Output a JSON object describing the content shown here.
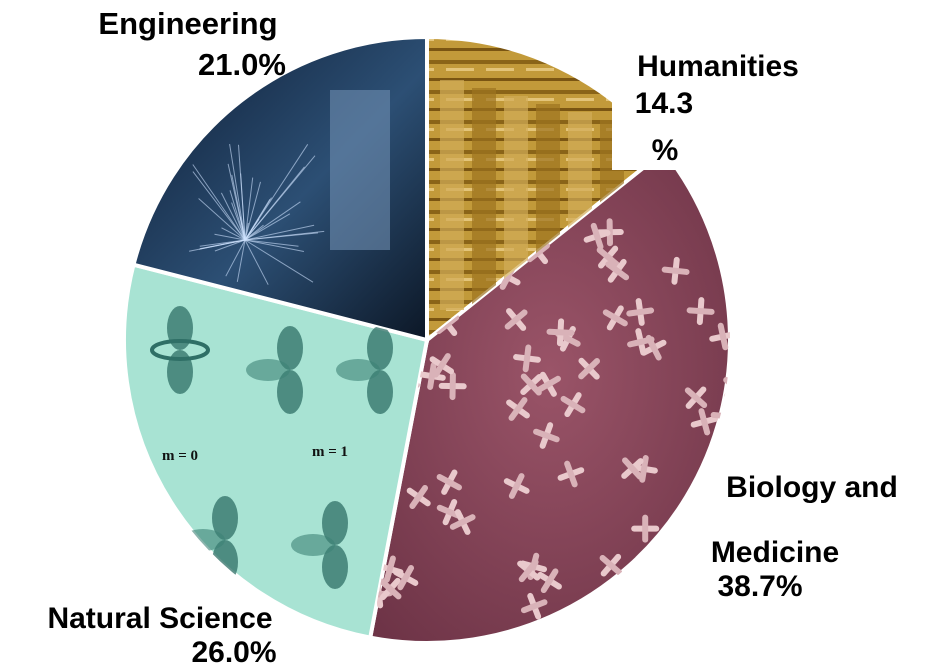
{
  "chart_data": {
    "type": "pie",
    "title": "",
    "slices": [
      {
        "name": "Humanities",
        "value": 14.3,
        "display": [
          "Humanities",
          "14.3",
          "%"
        ],
        "color": "#b8912e"
      },
      {
        "name": "Biology and Medicine",
        "value": 38.7,
        "display": [
          "Biology and",
          "Medicine",
          "38.7%"
        ],
        "color": "#8a4a5c"
      },
      {
        "name": "Natural Science",
        "value": 26.0,
        "display": [
          "Natural Science",
          "26.0%"
        ],
        "color": "#a8e3d3"
      },
      {
        "name": "Engineering",
        "value": 21.0,
        "display": [
          "Engineering",
          "21.0%"
        ],
        "color": "#1f3a5c"
      }
    ],
    "slice_images": {
      "Humanities": "stack of old books",
      "Biology and Medicine": "chromosomes micrograph",
      "Natural Science": "atomic orbital diagrams",
      "Engineering": "industrial machinery with sparks"
    },
    "orbital_labels": [
      "m = 0",
      "m = 1"
    ]
  }
}
